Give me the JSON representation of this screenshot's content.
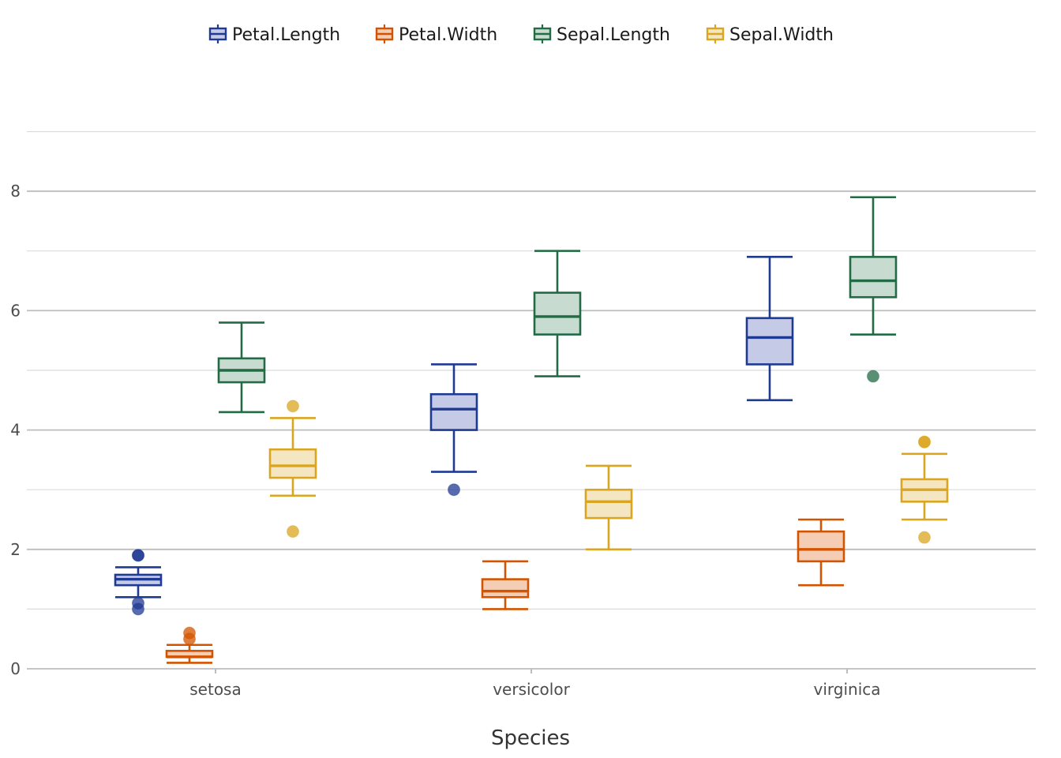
{
  "chart_data": {
    "type": "boxplot",
    "title": "",
    "xlabel": "Species",
    "ylabel": "",
    "ylim": [
      0,
      9
    ],
    "y_ticks": [
      0,
      2,
      4,
      6,
      8
    ],
    "y_tick_labels": [
      "0",
      "2",
      "4",
      "6",
      "8"
    ],
    "grid": true,
    "legend_position": "top",
    "categories": [
      "setosa",
      "versicolor",
      "virginica"
    ],
    "series": [
      {
        "name": "Petal.Length",
        "color": "#1F3A93",
        "fill": "#C5CAE6",
        "boxes": [
          {
            "category": "setosa",
            "whisker_low": 1.2,
            "q1": 1.4,
            "median": 1.5,
            "q3": 1.575,
            "whisker_high": 1.7,
            "outliers": [
              1.0,
              1.1,
              1.9,
              1.9
            ]
          },
          {
            "category": "versicolor",
            "whisker_low": 3.3,
            "q1": 4.0,
            "median": 4.35,
            "q3": 4.6,
            "whisker_high": 5.1,
            "outliers": [
              3.0
            ]
          },
          {
            "category": "virginica",
            "whisker_low": 4.5,
            "q1": 5.1,
            "median": 5.55,
            "q3": 5.875,
            "whisker_high": 6.9,
            "outliers": []
          }
        ]
      },
      {
        "name": "Petal.Width",
        "color": "#D35400",
        "fill": "#F5CDB4",
        "boxes": [
          {
            "category": "setosa",
            "whisker_low": 0.1,
            "q1": 0.2,
            "median": 0.2,
            "q3": 0.3,
            "whisker_high": 0.4,
            "outliers": [
              0.5,
              0.6
            ]
          },
          {
            "category": "versicolor",
            "whisker_low": 1.0,
            "q1": 1.2,
            "median": 1.3,
            "q3": 1.5,
            "whisker_high": 1.8,
            "outliers": []
          },
          {
            "category": "virginica",
            "whisker_low": 1.4,
            "q1": 1.8,
            "median": 2.0,
            "q3": 2.3,
            "whisker_high": 2.5,
            "outliers": []
          }
        ]
      },
      {
        "name": "Sepal.Length",
        "color": "#226B45",
        "fill": "#C8DBD1",
        "boxes": [
          {
            "category": "setosa",
            "whisker_low": 4.3,
            "q1": 4.8,
            "median": 5.0,
            "q3": 5.2,
            "whisker_high": 5.8,
            "outliers": []
          },
          {
            "category": "versicolor",
            "whisker_low": 4.9,
            "q1": 5.6,
            "median": 5.9,
            "q3": 6.3,
            "whisker_high": 7.0,
            "outliers": []
          },
          {
            "category": "virginica",
            "whisker_low": 5.6,
            "q1": 6.225,
            "median": 6.5,
            "q3": 6.9,
            "whisker_high": 7.9,
            "outliers": [
              4.9
            ]
          }
        ]
      },
      {
        "name": "Sepal.Width",
        "color": "#DAA520",
        "fill": "#F5E6C2",
        "boxes": [
          {
            "category": "setosa",
            "whisker_low": 2.9,
            "q1": 3.2,
            "median": 3.4,
            "q3": 3.675,
            "whisker_high": 4.2,
            "outliers": [
              2.3,
              4.4
            ]
          },
          {
            "category": "versicolor",
            "whisker_low": 2.0,
            "q1": 2.525,
            "median": 2.8,
            "q3": 3.0,
            "whisker_high": 3.4,
            "outliers": []
          },
          {
            "category": "virginica",
            "whisker_low": 2.5,
            "q1": 2.8,
            "median": 3.0,
            "q3": 3.175,
            "whisker_high": 3.6,
            "outliers": [
              2.2,
              3.8,
              3.8
            ]
          }
        ]
      }
    ]
  }
}
